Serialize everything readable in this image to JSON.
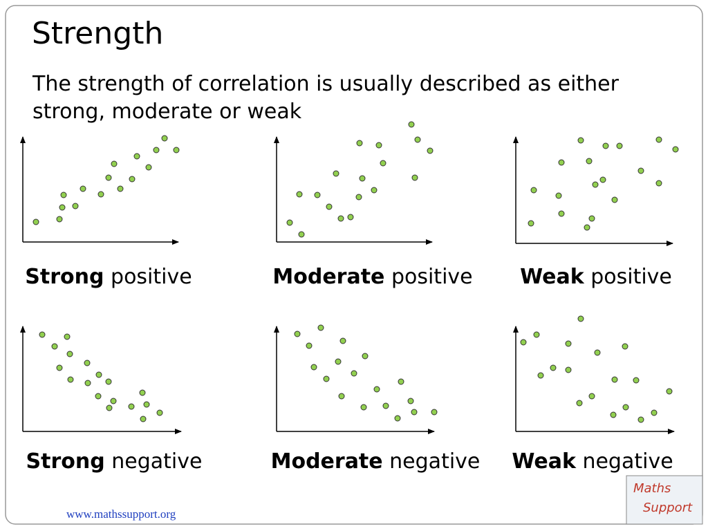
{
  "header": {
    "title": "Strength",
    "description": [
      "The strength of correlation is usually described as either",
      "strong, moderate or weak"
    ]
  },
  "plots": [
    {
      "strength": "Strong",
      "direction": "positive"
    },
    {
      "strength": "Moderate",
      "direction": "positive"
    },
    {
      "strength": "Weak",
      "direction": "positive"
    },
    {
      "strength": "Strong",
      "direction": "negative"
    },
    {
      "strength": "Moderate",
      "direction": "negative"
    },
    {
      "strength": "Weak",
      "direction": "negative"
    }
  ],
  "footer": {
    "url": "www.mathssupport.org"
  },
  "logo": {
    "lines": [
      "Maths",
      "Support"
    ]
  }
}
